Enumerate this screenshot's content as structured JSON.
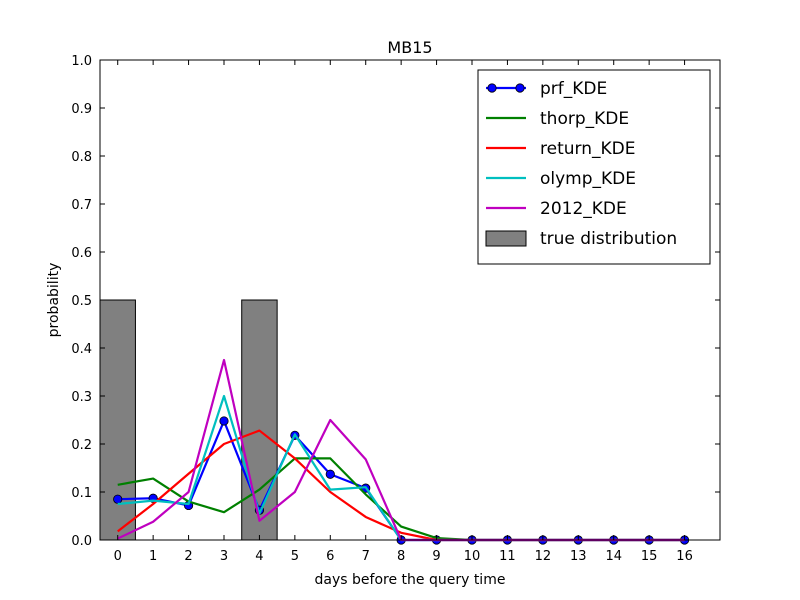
{
  "chart_data": {
    "type": "line",
    "title": "MB15",
    "xlabel": "days before the query time",
    "ylabel": "probability",
    "xlim": [
      -0.5,
      17
    ],
    "ylim": [
      0,
      1.0
    ],
    "x_ticks": [
      0,
      1,
      2,
      3,
      4,
      5,
      6,
      7,
      8,
      9,
      10,
      11,
      12,
      13,
      14,
      15,
      16
    ],
    "y_ticks": [
      0.0,
      0.1,
      0.2,
      0.3,
      0.4,
      0.5,
      0.6,
      0.7,
      0.8,
      0.9,
      1.0
    ],
    "y_tick_labels": [
      "0.0",
      "0.1",
      "0.2",
      "0.3",
      "0.4",
      "0.5",
      "0.6",
      "0.7",
      "0.8",
      "0.9",
      "1.0"
    ],
    "grid": false,
    "legend_position": "top-right",
    "series": [
      {
        "name": "prf_KDE",
        "kind": "line-marker",
        "color": "#0000ff",
        "x": [
          0,
          1,
          2,
          3,
          4,
          5,
          6,
          7,
          8,
          9,
          10,
          11,
          12,
          13,
          14,
          15,
          16
        ],
        "y": [
          0.085,
          0.087,
          0.072,
          0.248,
          0.062,
          0.218,
          0.137,
          0.108,
          0.0,
          0.0,
          0.0,
          0.0,
          0.0,
          0.0,
          0.0,
          0.0,
          0.0
        ]
      },
      {
        "name": "thorp_KDE",
        "kind": "line",
        "color": "#008000",
        "x": [
          0,
          1,
          2,
          3,
          4,
          5,
          6,
          7,
          8,
          9,
          10,
          11,
          12,
          13,
          14,
          15,
          16
        ],
        "y": [
          0.115,
          0.128,
          0.08,
          0.058,
          0.105,
          0.17,
          0.17,
          0.095,
          0.028,
          0.004,
          0.0,
          0.0,
          0.0,
          0.0,
          0.0,
          0.0,
          0.0
        ]
      },
      {
        "name": "return_KDE",
        "kind": "line",
        "color": "#ff0000",
        "x": [
          0,
          1,
          2,
          3,
          4,
          5,
          6,
          7,
          8,
          9,
          10,
          11,
          12,
          13,
          14,
          15,
          16
        ],
        "y": [
          0.018,
          0.075,
          0.138,
          0.2,
          0.228,
          0.17,
          0.1,
          0.048,
          0.015,
          0.0,
          0.0,
          0.0,
          0.0,
          0.0,
          0.0,
          0.0,
          0.0
        ]
      },
      {
        "name": "olymp_KDE",
        "kind": "line",
        "color": "#00bfbf",
        "x": [
          0,
          1,
          2,
          3,
          4,
          5,
          6,
          7,
          8,
          9,
          10,
          11,
          12,
          13,
          14,
          15,
          16
        ],
        "y": [
          0.075,
          0.082,
          0.075,
          0.3,
          0.055,
          0.22,
          0.105,
          0.11,
          0.0,
          0.0,
          0.0,
          0.0,
          0.0,
          0.0,
          0.0,
          0.0,
          0.0
        ]
      },
      {
        "name": "2012_KDE",
        "kind": "line",
        "color": "#bf00bf",
        "x": [
          0,
          1,
          2,
          3,
          4,
          5,
          6,
          7,
          8,
          9,
          10,
          11,
          12,
          13,
          14,
          15,
          16
        ],
        "y": [
          0.003,
          0.038,
          0.1,
          0.375,
          0.04,
          0.1,
          0.25,
          0.168,
          0.0,
          0.0,
          0.0,
          0.0,
          0.0,
          0.0,
          0.0,
          0.0,
          0.0
        ]
      },
      {
        "name": "true distribution",
        "kind": "bar",
        "color": "#808080",
        "x": [
          0,
          4
        ],
        "y": [
          0.5,
          0.5
        ]
      }
    ]
  }
}
